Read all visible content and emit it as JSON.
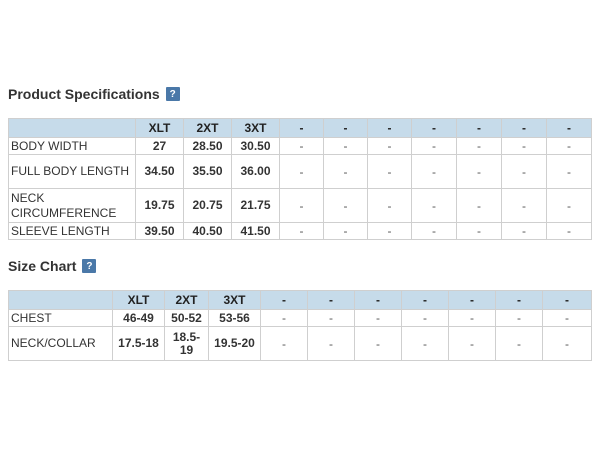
{
  "product_specifications": {
    "title": "Product Specifications",
    "help_label": "?",
    "columns": [
      "",
      "XLT",
      "2XT",
      "3XT",
      "-",
      "-",
      "-",
      "-",
      "-",
      "-",
      "-"
    ],
    "rows": [
      {
        "label": "BODY WIDTH",
        "values": [
          "27",
          "28.50",
          "30.50",
          "-",
          "-",
          "-",
          "-",
          "-",
          "-",
          "-"
        ]
      },
      {
        "label": "FULL BODY LENGTH",
        "values": [
          "34.50",
          "35.50",
          "36.00",
          "-",
          "-",
          "-",
          "-",
          "-",
          "-",
          "-"
        ]
      },
      {
        "label": "NECK CIRCUMFERENCE",
        "values": [
          "19.75",
          "20.75",
          "21.75",
          "-",
          "-",
          "-",
          "-",
          "-",
          "-",
          "-"
        ]
      },
      {
        "label": "SLEEVE LENGTH",
        "values": [
          "39.50",
          "40.50",
          "41.50",
          "-",
          "-",
          "-",
          "-",
          "-",
          "-",
          "-"
        ]
      }
    ]
  },
  "size_chart": {
    "title": "Size Chart",
    "help_label": "?",
    "columns": [
      "",
      "XLT",
      "2XT",
      "3XT",
      "-",
      "-",
      "-",
      "-",
      "-",
      "-",
      "-"
    ],
    "rows": [
      {
        "label": "CHEST",
        "values": [
          "46-49",
          "50-52",
          "53-56",
          "-",
          "-",
          "-",
          "-",
          "-",
          "-",
          "-"
        ]
      },
      {
        "label": "NECK/COLLAR",
        "values": [
          "17.5-18",
          "18.5-19",
          "19.5-20",
          "-",
          "-",
          "-",
          "-",
          "-",
          "-",
          "-"
        ]
      }
    ]
  },
  "colors": {
    "header_background": "#c6dbea",
    "help_icon_background": "#4a78a8",
    "border": "#cfcfcf"
  }
}
